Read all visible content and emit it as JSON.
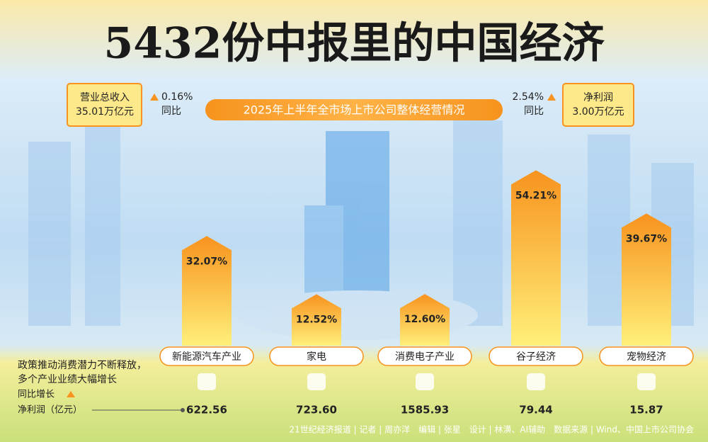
{
  "title": "5432份中报里的中国经济",
  "subtitle": "2025年上半年全市场上市公司整体经营情况",
  "summary": [
    {
      "label": "营业总收入",
      "value": "35.01万亿元",
      "change": "0.16%",
      "change_label": "同比"
    },
    {
      "label": "净利润",
      "value": "3.00万亿元",
      "change": "2.54%",
      "change_label": "同比"
    }
  ],
  "chart_data": {
    "type": "bar",
    "categories": [
      "新能源汽车产业",
      "家电",
      "消费电子产业",
      "谷子经济",
      "宠物经济"
    ],
    "values": [
      32.07,
      12.52,
      12.6,
      54.21,
      39.67
    ],
    "value_labels": [
      "32.07%",
      "12.52%",
      "12.60%",
      "54.21%",
      "39.67%"
    ],
    "color": "#f7931e"
  },
  "bottom": {
    "note": [
      "政策推动消费潜力不断释放，",
      "多个产业业绩大幅增长"
    ],
    "growth_legend": "同比增长",
    "net_profit_label": "净利润（亿元）",
    "net_profit": [
      "622.56",
      "723.60",
      "1585.93",
      "79.44",
      "15.87"
    ]
  },
  "credits": "21世纪经济报道 | 记者 | 周亦洋　编辑 | 张星　设计 | 林潢、AI辅助　数据来源 | Wind、中国上市公司协会"
}
